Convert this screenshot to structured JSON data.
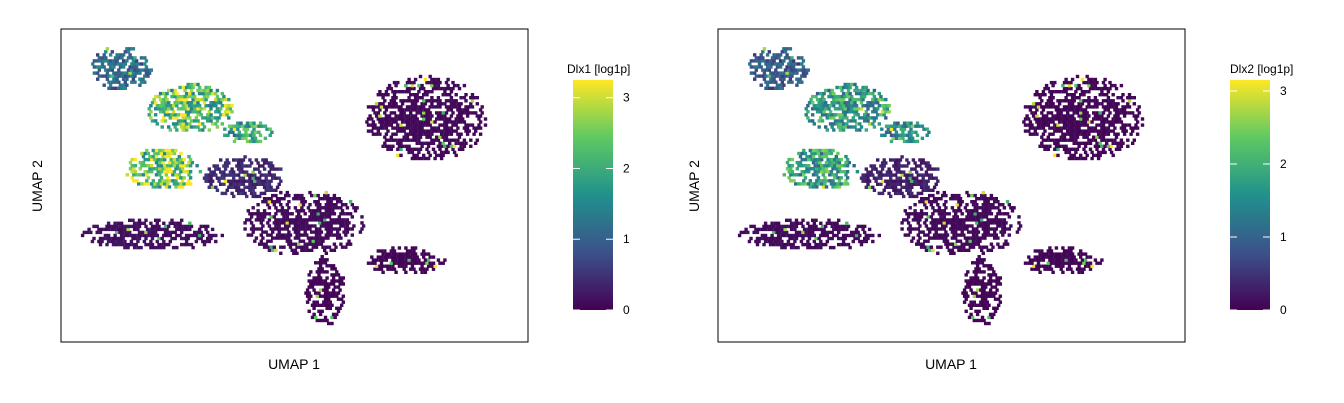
{
  "chart_data": [
    {
      "type": "scatter",
      "subtype": "hexbin-embedding",
      "title": "",
      "xlabel": "UMAP 1",
      "ylabel": "UMAP 2",
      "x_ticks_shown": false,
      "y_ticks_shown": false,
      "grid": false,
      "colormap": "viridis",
      "colors": [
        "#440154",
        "#3b528b",
        "#21918c",
        "#5ec962",
        "#fde725"
      ],
      "colorbar": {
        "title": "Dlx1 [log1p]",
        "range": [
          0,
          3.25
        ],
        "ticks": [
          0,
          1,
          2,
          3
        ],
        "tick_labels": [
          "0",
          "1",
          "2",
          "3"
        ],
        "placement": "right"
      },
      "clusters": [
        {
          "name": "top-left",
          "x": [
            -10.5,
            -7.5
          ],
          "y": [
            4.2,
            6.6
          ],
          "mean_value": 1.1
        },
        {
          "name": "upper-left",
          "x": [
            -7.8,
            -3.5
          ],
          "y": [
            2.0,
            4.6
          ],
          "mean_value": 2.3
        },
        {
          "name": "upper-left-hook",
          "x": [
            -4.0,
            -1.5
          ],
          "y": [
            1.4,
            2.6
          ],
          "mean_value": 1.8
        },
        {
          "name": "mid-left",
          "x": [
            -8.8,
            -5.0
          ],
          "y": [
            -1.0,
            1.2
          ],
          "mean_value": 2.5
        },
        {
          "name": "bridge",
          "x": [
            -5.0,
            -1.0
          ],
          "y": [
            -1.5,
            0.8
          ],
          "mean_value": 0.4
        },
        {
          "name": "left-tail",
          "x": [
            -11.0,
            -4.0
          ],
          "y": [
            -4.2,
            -2.5
          ],
          "mean_value": 0.15
        },
        {
          "name": "center",
          "x": [
            -3.0,
            3.0
          ],
          "y": [
            -4.5,
            -1.0
          ],
          "mean_value": 0.1
        },
        {
          "name": "right-blob",
          "x": [
            3.0,
            9.0
          ],
          "y": [
            0.5,
            5.0
          ],
          "mean_value": 0.08
        },
        {
          "name": "bottom-tail",
          "x": [
            0.0,
            2.0
          ],
          "y": [
            -8.2,
            -4.5
          ],
          "mean_value": 0.05
        },
        {
          "name": "right-tail",
          "x": [
            3.0,
            7.0
          ],
          "y": [
            -5.5,
            -4.0
          ],
          "mean_value": 0.05
        }
      ]
    },
    {
      "type": "scatter",
      "subtype": "hexbin-embedding",
      "title": "",
      "xlabel": "UMAP 1",
      "ylabel": "UMAP 2",
      "x_ticks_shown": false,
      "y_ticks_shown": false,
      "grid": false,
      "colormap": "viridis",
      "colors": [
        "#440154",
        "#3b528b",
        "#21918c",
        "#5ec962",
        "#fde725"
      ],
      "colorbar": {
        "title": "Dlx2 [log1p]",
        "range": [
          0,
          3.15
        ],
        "ticks": [
          0,
          1,
          2,
          3
        ],
        "tick_labels": [
          "0",
          "1",
          "2",
          "3"
        ],
        "placement": "right"
      },
      "clusters": [
        {
          "name": "top-left",
          "x": [
            -10.5,
            -7.5
          ],
          "y": [
            4.2,
            6.6
          ],
          "mean_value": 0.9
        },
        {
          "name": "upper-left",
          "x": [
            -7.8,
            -3.5
          ],
          "y": [
            2.0,
            4.6
          ],
          "mean_value": 1.7
        },
        {
          "name": "upper-left-hook",
          "x": [
            -4.0,
            -1.5
          ],
          "y": [
            1.4,
            2.6
          ],
          "mean_value": 1.4
        },
        {
          "name": "mid-left",
          "x": [
            -8.8,
            -5.0
          ],
          "y": [
            -1.0,
            1.2
          ],
          "mean_value": 1.8
        },
        {
          "name": "bridge",
          "x": [
            -5.0,
            -1.0
          ],
          "y": [
            -1.5,
            0.8
          ],
          "mean_value": 0.3
        },
        {
          "name": "left-tail",
          "x": [
            -11.0,
            -4.0
          ],
          "y": [
            -4.2,
            -2.5
          ],
          "mean_value": 0.1
        },
        {
          "name": "center",
          "x": [
            -3.0,
            3.0
          ],
          "y": [
            -4.5,
            -1.0
          ],
          "mean_value": 0.08
        },
        {
          "name": "right-blob",
          "x": [
            3.0,
            9.0
          ],
          "y": [
            0.5,
            5.0
          ],
          "mean_value": 0.05
        },
        {
          "name": "bottom-tail",
          "x": [
            0.0,
            2.0
          ],
          "y": [
            -8.2,
            -4.5
          ],
          "mean_value": 0.04
        },
        {
          "name": "right-tail",
          "x": [
            3.0,
            7.0
          ],
          "y": [
            -5.5,
            -4.0
          ],
          "mean_value": 0.04
        }
      ]
    }
  ]
}
